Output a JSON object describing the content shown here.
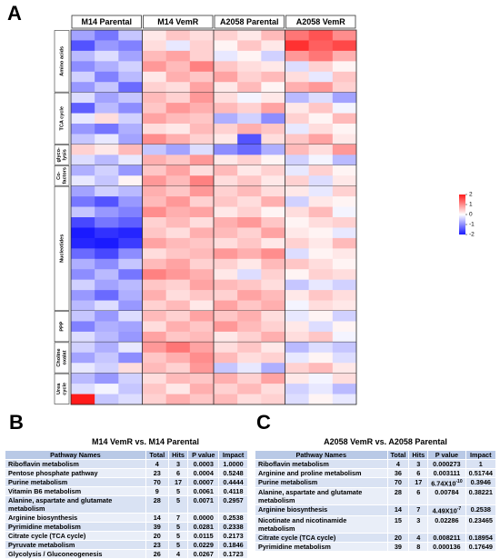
{
  "chart_data": {
    "type": "heatmap",
    "panel_label": "A",
    "columns": [
      "M14 Parental",
      "M14 VemR",
      "A2058 Parental",
      "A2058 VemR"
    ],
    "groups": [
      {
        "name_lines": [
          "Amino acids"
        ],
        "rows": [
          [
            -0.8,
            -1.2,
            -0.5,
            0.2,
            0.5,
            0.3,
            0.4,
            0.2,
            0.6,
            1.2,
            1.5,
            1.0
          ],
          [
            -1.5,
            -0.9,
            -1.1,
            0.3,
            -0.2,
            0.4,
            0.1,
            0.5,
            0.2,
            1.8,
            1.4,
            1.6
          ],
          [
            -0.6,
            -0.3,
            -0.8,
            0.6,
            0.8,
            0.4,
            -0.2,
            0.1,
            -0.4,
            0.9,
            1.2,
            0.7
          ],
          [
            -1.0,
            -0.7,
            -0.4,
            0.9,
            0.6,
            1.1,
            0.5,
            0.3,
            0.2,
            -0.3,
            0.4,
            0.1
          ],
          [
            -0.4,
            -1.1,
            -0.6,
            0.2,
            0.7,
            0.5,
            0.8,
            0.4,
            0.6,
            0.3,
            -0.2,
            0.5
          ],
          [
            -0.9,
            -0.5,
            -1.3,
            0.4,
            0.3,
            0.8,
            0.2,
            0.6,
            0.1,
            0.7,
            0.9,
            0.4
          ]
        ]
      },
      {
        "name_lines": [
          "TCA cycle"
        ],
        "rows": [
          [
            -0.3,
            -0.8,
            -0.5,
            0.6,
            0.4,
            0.9,
            0.3,
            -0.1,
            0.2,
            -0.6,
            -0.3,
            -0.8
          ],
          [
            -1.4,
            -0.6,
            -1.0,
            0.5,
            0.9,
            0.7,
            0.6,
            0.4,
            0.8,
            0.2,
            0.5,
            -0.1
          ],
          [
            -0.2,
            0.3,
            -0.4,
            0.8,
            0.6,
            0.5,
            -0.7,
            -0.4,
            -1.0,
            0.4,
            0.1,
            0.6
          ],
          [
            -0.9,
            -1.2,
            -0.7,
            0.3,
            0.2,
            0.6,
            0.4,
            0.7,
            0.5,
            -0.2,
            0.3,
            0.1
          ],
          [
            -0.5,
            -0.2,
            -0.8,
            1.0,
            0.7,
            0.4,
            0.2,
            -1.5,
            0.3,
            0.5,
            0.8,
            0.2
          ]
        ]
      },
      {
        "name_lines": [
          "glyco-",
          "lysis"
        ],
        "rows": [
          [
            0.4,
            0.2,
            0.6,
            -0.5,
            -0.8,
            -0.3,
            -1.0,
            -1.3,
            -0.7,
            0.6,
            0.3,
            0.9
          ],
          [
            -0.3,
            -0.6,
            -0.2,
            0.7,
            0.5,
            0.9,
            0.2,
            0.4,
            0.1,
            -0.4,
            -0.1,
            -0.6
          ]
        ]
      },
      {
        "name_lines": [
          "Co-",
          "factors"
        ],
        "rows": [
          [
            -0.7,
            -0.4,
            -0.9,
            0.5,
            0.8,
            0.3,
            0.6,
            0.2,
            0.4,
            -0.2,
            0.4,
            0.1
          ],
          [
            -0.2,
            -0.5,
            0.1,
            0.9,
            0.6,
            1.1,
            0.3,
            0.5,
            0.2,
            0.4,
            -0.3,
            0.2
          ]
        ]
      },
      {
        "name_lines": [
          "Nucleotides"
        ],
        "rows": [
          [
            -0.8,
            -0.4,
            -0.6,
            0.7,
            0.5,
            0.9,
            0.4,
            0.6,
            0.3,
            0.2,
            -0.2,
            0.4
          ],
          [
            -1.2,
            -1.5,
            -0.9,
            0.6,
            0.9,
            0.4,
            0.5,
            0.3,
            0.7,
            -0.4,
            0.2,
            0.1
          ],
          [
            -0.5,
            -0.9,
            -1.1,
            1.0,
            0.7,
            0.8,
            0.2,
            0.4,
            0.1,
            0.3,
            0.6,
            -0.1
          ],
          [
            -1.6,
            -1.2,
            -1.4,
            0.4,
            0.6,
            0.3,
            0.7,
            0.9,
            0.5,
            0.1,
            0.3,
            0.4
          ],
          [
            -2.0,
            -1.8,
            -1.9,
            0.5,
            0.3,
            0.7,
            0.6,
            0.4,
            0.8,
            0.2,
            0.1,
            -0.2
          ],
          [
            -1.9,
            -2.0,
            -1.7,
            0.8,
            0.6,
            0.5,
            0.3,
            0.5,
            0.2,
            0.4,
            0.2,
            0.6
          ],
          [
            -1.3,
            -1.6,
            -1.0,
            0.3,
            0.5,
            0.6,
            0.9,
            0.7,
            1.0,
            -0.3,
            0.1,
            0.2
          ],
          [
            -0.7,
            -1.0,
            -0.5,
            0.6,
            0.8,
            0.4,
            0.4,
            0.2,
            0.6,
            0.5,
            0.3,
            0.1
          ],
          [
            -1.0,
            -0.6,
            -1.2,
            1.1,
            0.9,
            0.7,
            0.2,
            -0.3,
            0.4,
            0.1,
            0.4,
            0.3
          ],
          [
            -0.4,
            -0.8,
            -0.6,
            0.5,
            0.4,
            0.8,
            0.6,
            0.5,
            0.3,
            -0.5,
            -0.2,
            -0.4
          ],
          [
            -0.9,
            -1.3,
            -0.7,
            0.7,
            0.3,
            0.5,
            0.4,
            0.8,
            0.6,
            0.2,
            0.5,
            0.3
          ],
          [
            -0.6,
            -0.3,
            -0.9,
            0.4,
            0.6,
            0.2,
            0.8,
            0.5,
            0.7,
            -0.1,
            0.3,
            0.2
          ]
        ]
      },
      {
        "name_lines": [
          "PPP"
        ],
        "rows": [
          [
            -0.5,
            -0.9,
            -0.3,
            0.6,
            0.4,
            0.8,
            0.5,
            0.7,
            0.3,
            -0.2,
            0.1,
            -0.4
          ],
          [
            -1.1,
            -0.7,
            -0.8,
            0.3,
            0.7,
            0.5,
            0.9,
            0.6,
            0.4,
            0.2,
            -0.3,
            0.1
          ],
          [
            -0.3,
            -0.6,
            -0.9,
            0.8,
            0.5,
            0.6,
            0.2,
            0.4,
            0.7,
            0.3,
            0.5,
            -0.1
          ]
        ]
      },
      {
        "name_lines": [
          "Choline",
          "oxalat"
        ],
        "rows": [
          [
            -0.4,
            -0.7,
            -0.2,
            0.9,
            1.2,
            0.8,
            0.3,
            0.5,
            0.2,
            -0.6,
            -0.3,
            -0.5
          ],
          [
            -0.8,
            -0.5,
            -1.0,
            0.5,
            0.7,
            1.0,
            0.6,
            0.3,
            0.4,
            -0.2,
            0.1,
            -0.3
          ],
          [
            -0.2,
            -0.4,
            0.3,
            0.6,
            0.4,
            0.9,
            -0.5,
            -0.2,
            -0.7,
            0.4,
            0.6,
            0.2
          ]
        ]
      },
      {
        "name_lines": [
          "Urea",
          "cycle"
        ],
        "rows": [
          [
            -0.6,
            -0.9,
            -0.4,
            0.3,
            0.6,
            0.5,
            0.7,
            0.4,
            0.8,
            0.2,
            -0.1,
            0.3
          ],
          [
            -0.3,
            -0.1,
            -0.5,
            0.5,
            0.2,
            0.7,
            0.4,
            0.6,
            0.3,
            -0.4,
            -0.2,
            -0.6
          ],
          [
            2.0,
            -0.5,
            -0.3,
            0.4,
            0.7,
            0.5,
            0.6,
            0.3,
            0.4,
            -0.3,
            0.1,
            -0.2
          ]
        ]
      }
    ],
    "colorbar": {
      "lim": [
        -2,
        2
      ],
      "ticks": [
        2,
        1,
        0,
        -1,
        -2
      ],
      "colors": [
        "#1a1aff",
        "#ffffff",
        "#ff1a1a"
      ]
    }
  },
  "table_b": {
    "panel_label": "B",
    "title": "M14 VemR vs. M14 Parental",
    "columns": [
      "Pathway  Names",
      "Total",
      "Hits",
      "P value",
      "Impact"
    ],
    "rows": [
      [
        "Riboflavin metabolism",
        "4",
        "3",
        "0.0003",
        "1.0000"
      ],
      [
        "Pentose phosphate pathway",
        "23",
        "6",
        "0.0004",
        "0.5248"
      ],
      [
        "Purine metabolism",
        "70",
        "17",
        "0.0007",
        "0.4444"
      ],
      [
        "Vitamin B6 metabolism",
        "9",
        "5",
        "0.0061",
        "0.4118"
      ],
      [
        "Alanine, aspartate and glutamate metabolism",
        "28",
        "5",
        "0.0071",
        "0.2957"
      ],
      [
        "Arginine biosynthesis",
        "14",
        "7",
        "0.0000",
        "0.2538"
      ],
      [
        "Pyrimidine metabolism",
        "39",
        "5",
        "0.0281",
        "0.2338"
      ],
      [
        "Citrate cycle (TCA cycle)",
        "20",
        "5",
        "0.0115",
        "0.2173"
      ],
      [
        "Pyruvate metabolism",
        "23",
        "5",
        "0.0229",
        "0.1846"
      ],
      [
        "Glycolysis / Gluconeogenesis",
        "26",
        "4",
        "0.0267",
        "0.1723"
      ]
    ]
  },
  "table_c": {
    "panel_label": "C",
    "title": "A2058 VemR vs. A2058 Parental",
    "columns": [
      "Pathway  Names",
      "Total",
      "Hits",
      "P value",
      "Impact"
    ],
    "rows": [
      [
        "Riboflavin metabolism",
        "4",
        "3",
        "0.000273",
        "1"
      ],
      [
        "Arginine and proline metabolism",
        "36",
        "6",
        "0.003111",
        "0.51744"
      ],
      [
        "Purine metabolism",
        "70",
        "17",
        {
          "mantissa": "6.74X10",
          "exponent": "-10"
        },
        "0.3946"
      ],
      [
        "Alanine, aspartate and glutamate metabolism",
        "28",
        "6",
        "0.00784",
        "0.38221"
      ],
      [
        "Arginine biosynthesis",
        "14",
        "7",
        {
          "mantissa": "4.49X10",
          "exponent": "-7"
        },
        "0.2538"
      ],
      [
        "Nicotinate and nicotinamide metabolism",
        "15",
        "3",
        "0.02286",
        "0.23465"
      ],
      [
        "Citrate cycle (TCA cycle)",
        "20",
        "4",
        "0.008211",
        "0.18954"
      ],
      [
        "Pyrimidine metabolism",
        "39",
        "8",
        "0.000136",
        "0.17649"
      ]
    ]
  }
}
